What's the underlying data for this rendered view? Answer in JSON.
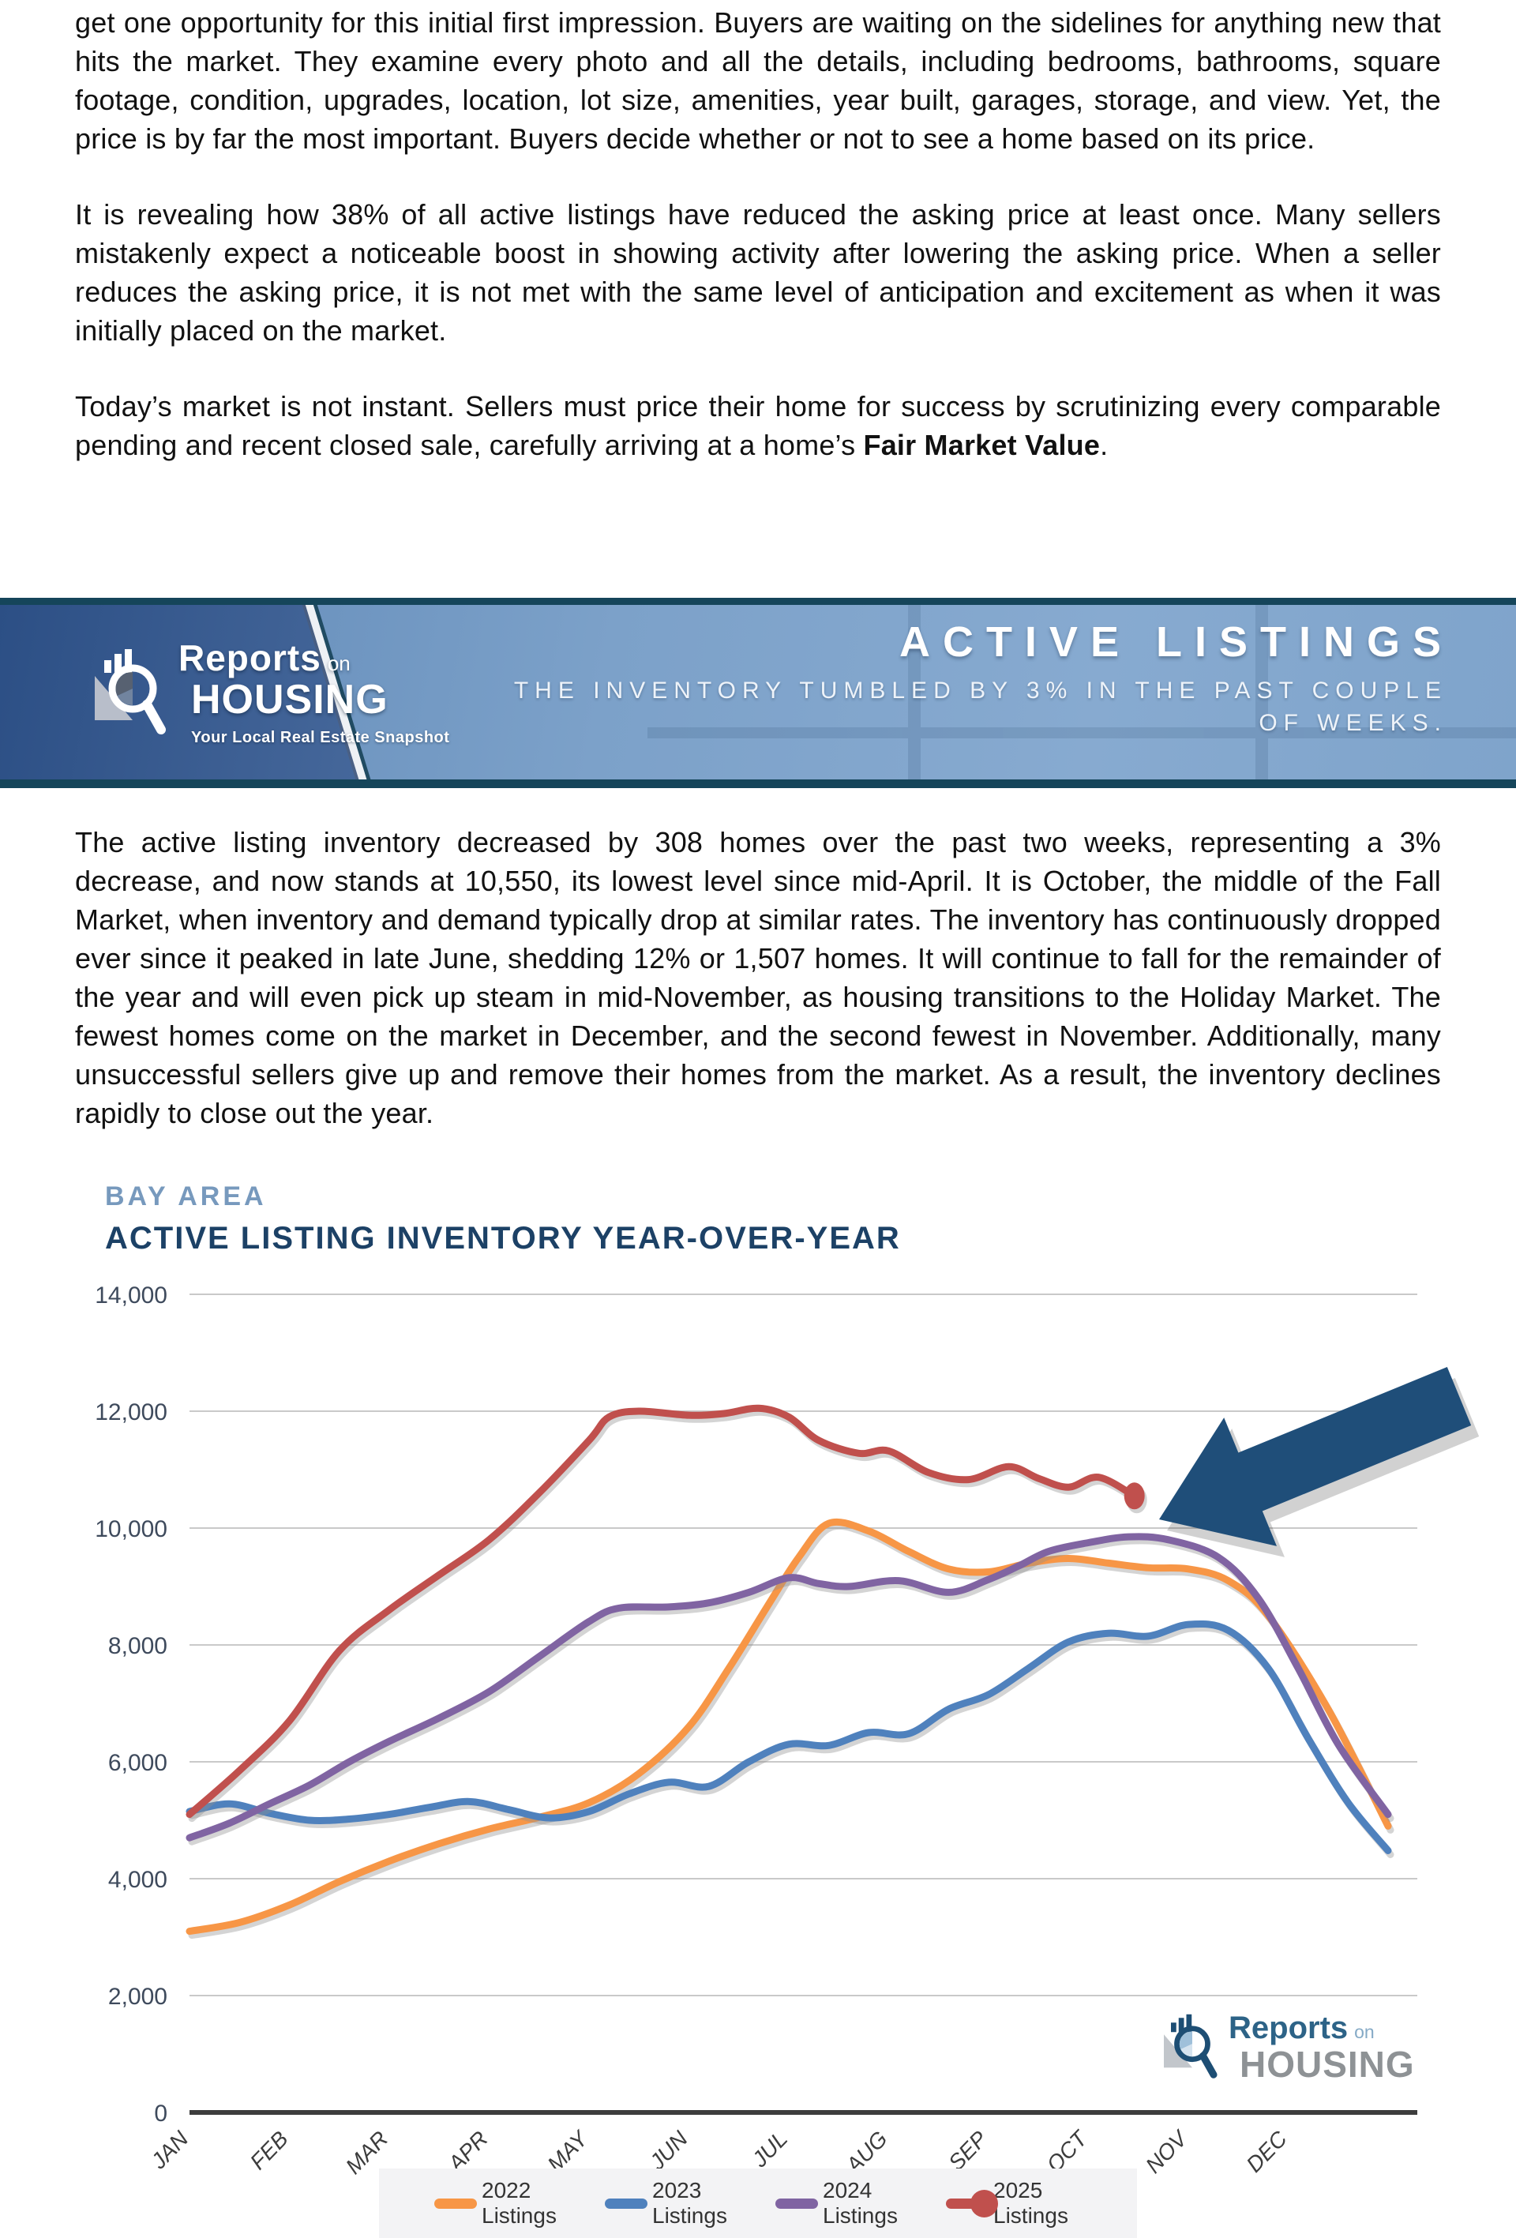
{
  "intro": {
    "p1": "get one opportunity for this initial first impression. Buyers are waiting on the sidelines for anything new that hits the market. They examine every photo and all the details, including bedrooms, bathrooms, square footage, condition, upgrades, location, lot size, amenities, year built, garages, storage, and view. Yet, the price is by far the most important. Buyers decide whether or not to see a home based on its price.",
    "p2": "It is revealing how 38% of all active listings have reduced the asking price at least once. Many sellers mistakenly expect a noticeable boost in showing activity after lowering the asking price. When a seller reduces the asking price, it is not met with the same level of anticipation and excitement as when it was initially placed on the market.",
    "p3_text": "Today’s market is not instant. Sellers must price their home for success by scrutinizing every comparable pending and recent closed sale, carefully arriving at a home’s ",
    "p3_bold": "Fair Market Value",
    "p3_end": "."
  },
  "brand": {
    "name_a": "Reports",
    "name_on": "on",
    "name_b": "HOUSING",
    "tagline": "Your Local Real Estate Snapshot"
  },
  "banner": {
    "title": "ACTIVE LISTINGS",
    "subtitle": "THE INVENTORY TUMBLED BY 3% IN THE PAST COUPLE OF WEEKS.",
    "left_color": "#2c4f85",
    "right_color": "#7ca1c9",
    "border_color": "#15455a"
  },
  "body": {
    "p1": "The active listing inventory decreased by 308 homes over the past two weeks, representing a 3% decrease, and now stands at 10,550, its lowest level since mid-April. It is October, the middle of the Fall Market, when inventory and demand typically drop at similar rates. The inventory has continuously dropped ever since it peaked in late June, shedding 12% or 1,507 homes. It will continue to fall for the remainder of the year and will even pick up steam in mid-November, as housing transitions to the Holiday Market. The fewest homes come on the market in December, and the second fewest in November. Additionally, many unsuccessful sellers give up and remove their homes from the market. As a result, the inventory declines rapidly to close out the year."
  },
  "chart_data": {
    "type": "line",
    "region_label": "BAY AREA",
    "title": "ACTIVE LISTING INVENTORY YEAR-OVER-YEAR",
    "months": [
      "JAN",
      "FEB",
      "MAR",
      "APR",
      "MAY",
      "JUN",
      "JUL",
      "AUG",
      "SEP",
      "OCT",
      "NOV",
      "DEC"
    ],
    "x_unit": "months, 0 = Jan 1, 12 = Dec 31",
    "ylim": [
      0,
      14000
    ],
    "y_tick_step": 2000,
    "y_tick_labels": [
      "0",
      "2,000",
      "4,000",
      "6,000",
      "8,000",
      "10,000",
      "12,000",
      "14,000"
    ],
    "grid": true,
    "legend_position": "bottom",
    "annotation": {
      "type": "arrow",
      "color": "#1f4e79",
      "points_to": "2025 series latest value 10,550 in mid-October"
    },
    "series": [
      {
        "name": "2022 Listings",
        "color": "#f79646",
        "x": [
          0,
          0.5,
          1,
          1.5,
          2,
          2.5,
          3,
          3.5,
          4,
          4.5,
          5,
          5.4,
          5.8,
          6.1,
          6.4,
          6.8,
          7.2,
          7.6,
          8,
          8.4,
          8.8,
          9.2,
          9.6,
          10,
          10.4,
          10.8,
          11.4,
          12
        ],
        "values": [
          3100,
          3250,
          3550,
          3950,
          4300,
          4600,
          4850,
          5050,
          5300,
          5800,
          6600,
          7600,
          8700,
          9500,
          10080,
          9950,
          9600,
          9300,
          9250,
          9400,
          9480,
          9400,
          9320,
          9300,
          9100,
          8500,
          6900,
          4900
        ]
      },
      {
        "name": "2023 Listings",
        "color": "#4f81bd",
        "x": [
          0,
          0.4,
          0.8,
          1.2,
          1.6,
          2,
          2.4,
          2.8,
          3.2,
          3.6,
          4,
          4.4,
          4.8,
          5.2,
          5.6,
          6,
          6.4,
          6.8,
          7.2,
          7.6,
          8,
          8.4,
          8.8,
          9.2,
          9.6,
          10,
          10.4,
          10.8,
          11.2,
          11.6,
          12
        ],
        "values": [
          5150,
          5280,
          5120,
          5000,
          5020,
          5100,
          5220,
          5320,
          5180,
          5040,
          5150,
          5450,
          5650,
          5580,
          6000,
          6300,
          6280,
          6500,
          6480,
          6900,
          7150,
          7600,
          8050,
          8200,
          8150,
          8350,
          8250,
          7600,
          6400,
          5300,
          4480
        ]
      },
      {
        "name": "2024 Listings",
        "color": "#8064a2",
        "x": [
          0,
          0.4,
          0.8,
          1.2,
          1.6,
          2,
          2.5,
          3,
          3.5,
          4,
          4.3,
          4.8,
          5.2,
          5.6,
          6,
          6.3,
          6.6,
          7.1,
          7.6,
          8,
          8.3,
          8.6,
          9,
          9.4,
          9.8,
          10.3,
          10.7,
          11.1,
          11.5,
          12
        ],
        "values": [
          4700,
          4950,
          5280,
          5600,
          6000,
          6350,
          6750,
          7200,
          7800,
          8400,
          8630,
          8650,
          8720,
          8900,
          9150,
          9050,
          9000,
          9100,
          8900,
          9120,
          9350,
          9600,
          9750,
          9850,
          9800,
          9500,
          8800,
          7600,
          6300,
          5100
        ]
      },
      {
        "name": "2025 Listings",
        "color": "#c0504d",
        "end_dot": true,
        "x": [
          0,
          0.5,
          1,
          1.5,
          2,
          2.5,
          3,
          3.5,
          4,
          4.2,
          4.5,
          5,
          5.35,
          5.7,
          6,
          6.3,
          6.7,
          7,
          7.4,
          7.8,
          8.2,
          8.5,
          8.8,
          9.1,
          9.46
        ],
        "values": [
          5100,
          5850,
          6700,
          7900,
          8600,
          9200,
          9800,
          10600,
          11500,
          11900,
          12000,
          11930,
          11960,
          12050,
          11900,
          11500,
          11280,
          11320,
          10950,
          10830,
          11050,
          10850,
          10700,
          10870,
          10550
        ]
      }
    ]
  }
}
